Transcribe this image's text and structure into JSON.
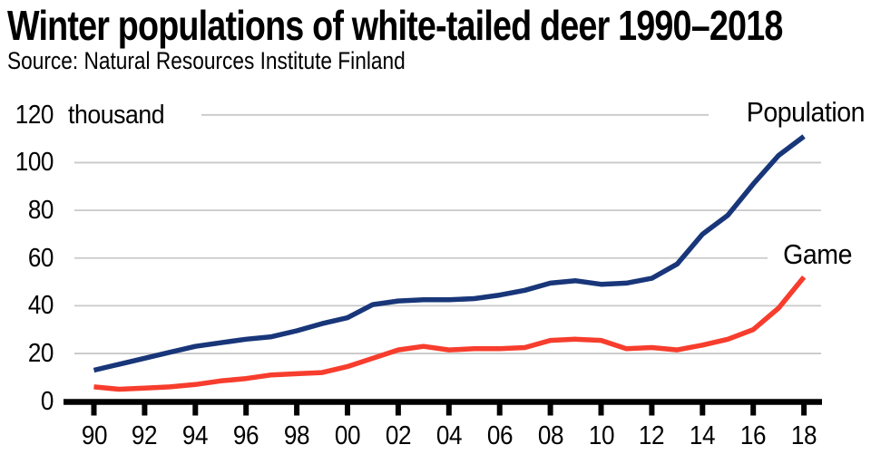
{
  "header": {
    "title": "Winter populations of white-tailed deer 1990–2018",
    "source": "Source: Natural Resources Institute Finland"
  },
  "chart_data": {
    "type": "line",
    "title": "Winter populations of white-tailed deer 1990–2018",
    "unit_label": "thousand",
    "x": [
      1990,
      1991,
      1992,
      1993,
      1994,
      1995,
      1996,
      1997,
      1998,
      1999,
      2000,
      2001,
      2002,
      2003,
      2004,
      2005,
      2006,
      2007,
      2008,
      2009,
      2010,
      2011,
      2012,
      2013,
      2014,
      2015,
      2016,
      2017,
      2018
    ],
    "x_tick_labels": [
      "90",
      "92",
      "94",
      "96",
      "98",
      "00",
      "02",
      "04",
      "06",
      "08",
      "10",
      "12",
      "14",
      "16",
      "18"
    ],
    "y_ticks": [
      0,
      20,
      40,
      60,
      80,
      100,
      120
    ],
    "y_tick_labels": [
      "0",
      "20",
      "40",
      "60",
      "80",
      "100",
      "120"
    ],
    "ylim": [
      0,
      120
    ],
    "grid": true,
    "legend_position": "line-end-right",
    "axis_color": "#000000",
    "grid_color": "#c9c9c9",
    "series": [
      {
        "name": "Population",
        "color": "#183679",
        "values": [
          13,
          15.5,
          18,
          20.5,
          23,
          24.5,
          26,
          27,
          29.5,
          32.5,
          35,
          40.5,
          42,
          42.5,
          42.5,
          43,
          44.5,
          46.5,
          49.5,
          50.5,
          49,
          49.5,
          51.5,
          57.5,
          70,
          78,
          91,
          103,
          111
        ]
      },
      {
        "name": "Game",
        "color": "#f73d2d",
        "values": [
          6,
          5,
          5.5,
          6,
          7,
          8.5,
          9.5,
          11,
          11.5,
          12,
          14.5,
          18,
          21.5,
          23,
          21.5,
          22,
          22,
          22.5,
          25.5,
          26,
          25.5,
          22,
          22.5,
          21.5,
          23.5,
          26,
          30,
          39,
          52
        ]
      }
    ]
  }
}
